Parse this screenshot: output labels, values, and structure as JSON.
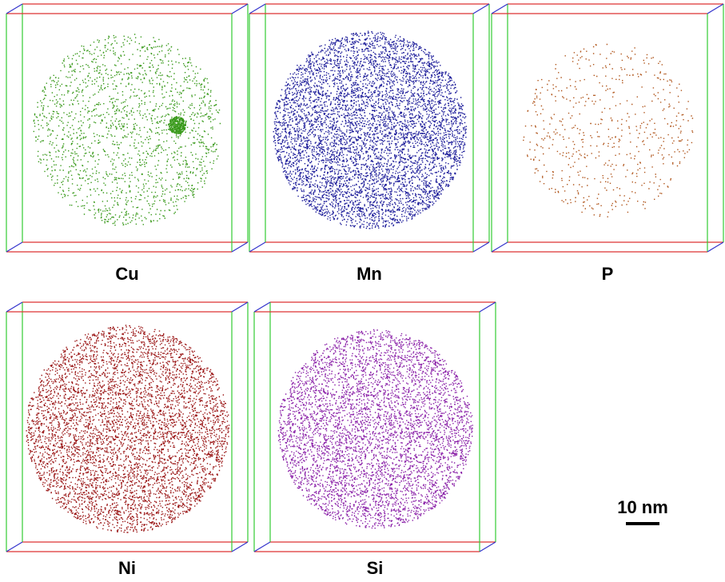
{
  "panels": [
    {
      "label": "Cu",
      "color": "#3a9a1c"
    },
    {
      "label": "Mn",
      "color": "#1c1c9a"
    },
    {
      "label": "P",
      "color": "#b0561c"
    },
    {
      "label": "Ni",
      "color": "#9a1414"
    },
    {
      "label": "Si",
      "color": "#8a20a8"
    }
  ],
  "scale_bar": {
    "label": "10 nm"
  }
}
